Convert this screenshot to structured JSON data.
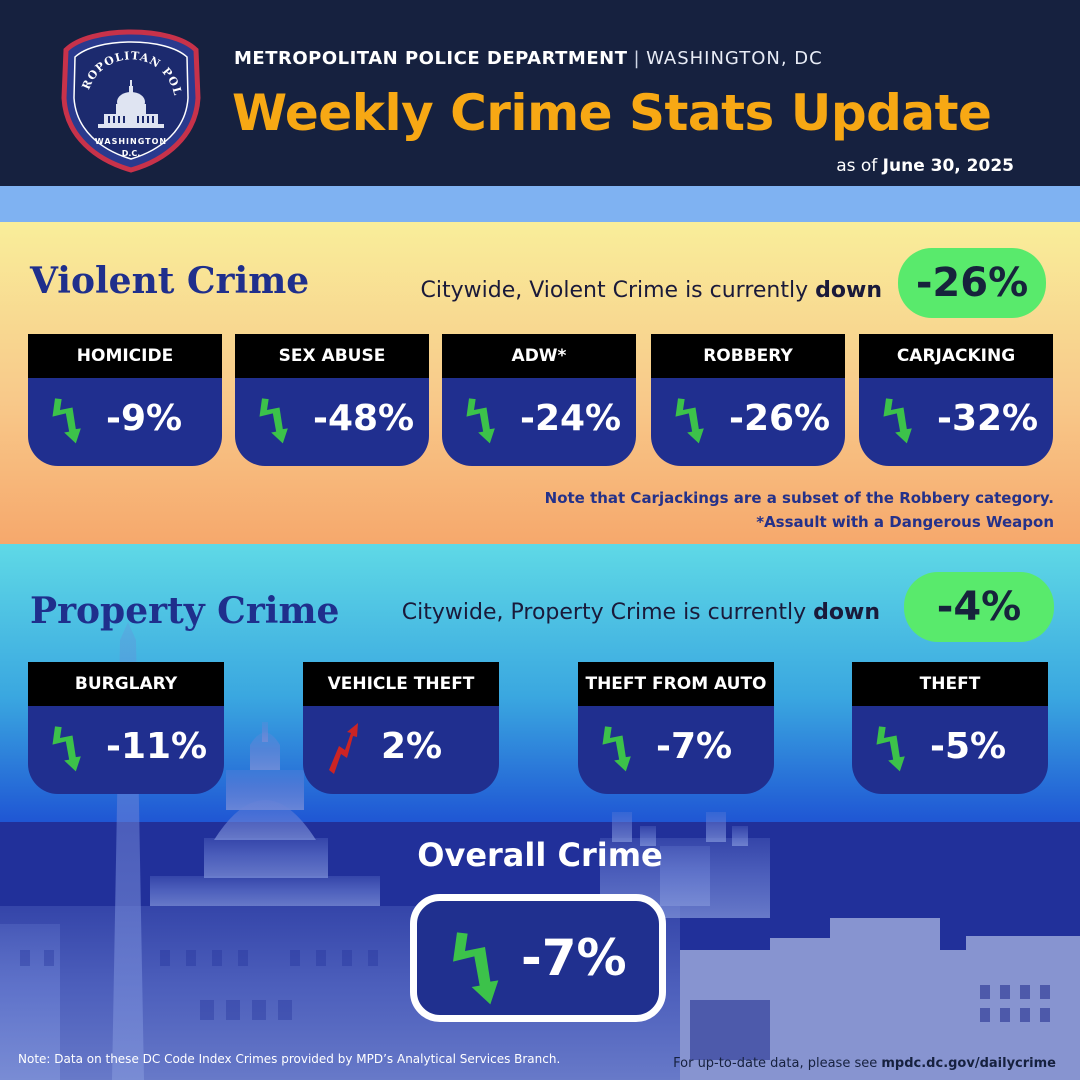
{
  "header": {
    "department": "METROPOLITAN POLICE DEPARTMENT",
    "separator": "|",
    "city": "WASHINGTON, DC",
    "title": "Weekly Crime Stats Update",
    "as_of_prefix": "as of",
    "as_of_date": "June 30, 2025",
    "badge": {
      "top_text": "METROPOLITAN POLICE",
      "bottom_text": "WASHINGTON",
      "sub_text": "D.C."
    }
  },
  "violent": {
    "title": "Violent Crime",
    "summary_prefix": "Citywide, Violent Crime is currently",
    "summary_direction": "down",
    "summary_value": "-26%",
    "stats": [
      {
        "label": "HOMICIDE",
        "value": "-9%",
        "trend": "down"
      },
      {
        "label": "SEX ABUSE",
        "value": "-48%",
        "trend": "down"
      },
      {
        "label": "ADW*",
        "value": "-24%",
        "trend": "down"
      },
      {
        "label": "ROBBERY",
        "value": "-26%",
        "trend": "down"
      },
      {
        "label": "CARJACKING",
        "value": "-32%",
        "trend": "down"
      }
    ],
    "note1": "Note that Carjackings are a subset of the Robbery category.",
    "note2": "*Assault with a Dangerous Weapon"
  },
  "property": {
    "title": "Property Crime",
    "summary_prefix": "Citywide, Property Crime is currently",
    "summary_direction": "down",
    "summary_value": "-4%",
    "stats": [
      {
        "label": "BURGLARY",
        "value": "-11%",
        "trend": "down"
      },
      {
        "label": "VEHICLE THEFT",
        "value": "2%",
        "trend": "up"
      },
      {
        "label": "THEFT FROM AUTO",
        "value": "-7%",
        "trend": "down"
      },
      {
        "label": "THEFT",
        "value": "-5%",
        "trend": "down"
      }
    ]
  },
  "overall": {
    "title": "Overall Crime",
    "value": "-7%",
    "trend": "down"
  },
  "footer": {
    "note": "Note: Data on these DC Code Index Crimes provided by MPD’s Analytical Services Branch.",
    "link_prefix": "For up-to-date data, please see",
    "link": "mpdc.dc.gov/dailycrime"
  },
  "colors": {
    "title_orange": "#f7a814",
    "header_navy": "#16213f",
    "stat_blue": "#202f8f",
    "pill_green": "#59ea6c",
    "arrow_down_green": "#3cc24a",
    "arrow_up_red": "#cc2424"
  },
  "icons": {
    "down": "trend-down-arrow-icon",
    "up": "trend-up-arrow-icon"
  }
}
